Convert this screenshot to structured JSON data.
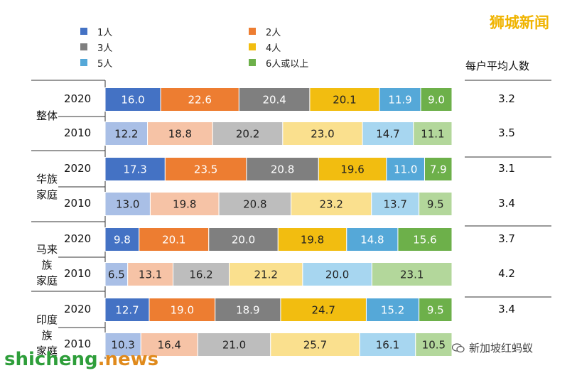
{
  "watermark_top": "狮城新闻",
  "watermark_bottom_left": {
    "part1": "shicheng",
    "part2": ".news"
  },
  "watermark_bottom_right": "新加坡红蚂蚁",
  "chart_data": {
    "type": "bar",
    "orientation": "horizontal",
    "stacked": true,
    "percent": true,
    "legend": [
      "1人",
      "2人",
      "3人",
      "4人",
      "5人",
      "6人或以上"
    ],
    "colors_strong": [
      "#4472c4",
      "#ed7d31",
      "#7f7f7f",
      "#f2bd10",
      "#55a8d8",
      "#6db04a"
    ],
    "colors_light": [
      "#a9bfe6",
      "#f6c3a6",
      "#bdbdbd",
      "#fae08e",
      "#a7d6f0",
      "#b3d79b"
    ],
    "side_header": "每户平均人数",
    "groups": [
      {
        "label": [
          "整体"
        ],
        "rows": [
          {
            "year": "2020",
            "values": [
              16.0,
              22.6,
              20.4,
              20.1,
              11.9,
              9.0
            ],
            "labels": [
              "16.0",
              "22.6",
              "20.4",
              "20.1",
              "11.9",
              "9.0"
            ],
            "avg": "3.2"
          },
          {
            "year": "2010",
            "values": [
              12.2,
              18.8,
              20.2,
              23.0,
              14.7,
              11.1
            ],
            "labels": [
              "12.2",
              "18.8",
              "20.2",
              "23.0",
              "14.7",
              "11.1"
            ],
            "avg": "3.5"
          }
        ]
      },
      {
        "label": [
          "华族",
          "家庭"
        ],
        "rows": [
          {
            "year": "2020",
            "values": [
              17.3,
              23.5,
              20.8,
              19.6,
              11.0,
              7.9
            ],
            "labels": [
              "17.3",
              "23.5",
              "20.8",
              "19.6",
              "11.0",
              "7.9"
            ],
            "avg": "3.1"
          },
          {
            "year": "2010",
            "values": [
              13.0,
              19.8,
              20.8,
              23.2,
              13.7,
              9.5
            ],
            "labels": [
              "13.0",
              "19.8",
              "20.8",
              "23.2",
              "13.7",
              "9.5"
            ],
            "avg": "3.4"
          }
        ]
      },
      {
        "label": [
          "马来族",
          "家庭"
        ],
        "rows": [
          {
            "year": "2020",
            "values": [
              9.8,
              20.1,
              20.0,
              19.8,
              14.8,
              15.6
            ],
            "labels": [
              "9.8",
              "20.1",
              "20.0",
              "19.8",
              "14.8",
              "15.6"
            ],
            "avg": "3.7"
          },
          {
            "year": "2010",
            "values": [
              6.5,
              13.1,
              16.2,
              21.2,
              20.0,
              23.1
            ],
            "labels": [
              "6.5",
              "13.1",
              "16.2",
              "21.2",
              "20.0",
              "23.1"
            ],
            "avg": "4.2"
          }
        ]
      },
      {
        "label": [
          "印度族",
          "家庭"
        ],
        "rows": [
          {
            "year": "2020",
            "values": [
              12.7,
              19.0,
              18.9,
              24.7,
              15.2,
              9.5
            ],
            "labels": [
              "12.7",
              "19.0",
              "18.9",
              "24.7",
              "15.2",
              "9.5"
            ],
            "avg": "3.4"
          },
          {
            "year": "2010",
            "values": [
              10.3,
              16.4,
              21.0,
              25.7,
              16.1,
              10.5
            ],
            "labels": [
              "10.3",
              "16.4",
              "21.0",
              "25.7",
              "16.1",
              "10.5"
            ],
            "avg": ""
          }
        ]
      }
    ]
  }
}
